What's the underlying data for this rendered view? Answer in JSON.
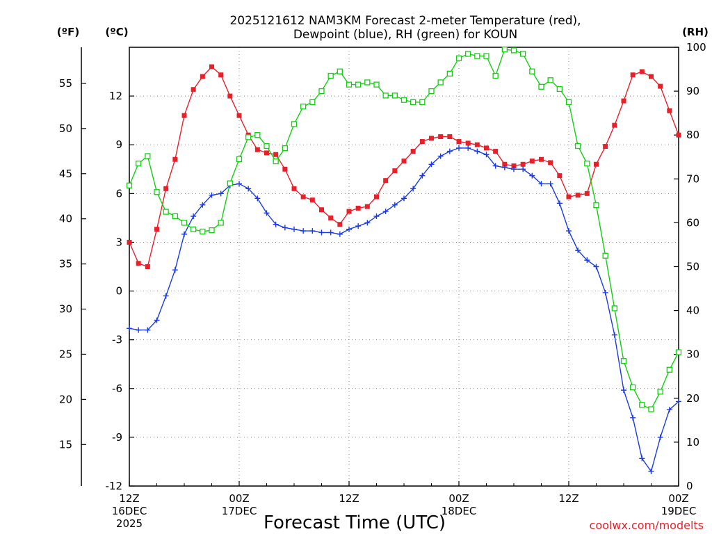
{
  "chart_data": {
    "type": "line",
    "title_line1": "2025121612 NAM3KM Forecast 2-meter Temperature (red),",
    "title_line2": "Dewpoint (blue), RH (green) for KOUN",
    "units": {
      "fahrenheit": "(ºF)",
      "celsius": "(ºC)",
      "rh": "(RH)"
    },
    "xlabel": "Forecast Time (UTC)",
    "credit": "coolwx.com/modelts",
    "x_range_hours": [
      0,
      60
    ],
    "celsius_range": [
      -12,
      15
    ],
    "rh_range": [
      0,
      100
    ],
    "celsius_ticks": [
      "12",
      "9",
      "6",
      "3",
      "0",
      "-3",
      "-6",
      "-9",
      "-12"
    ],
    "fahrenheit_ticks": [
      "55",
      "50",
      "45",
      "40",
      "35",
      "30",
      "25",
      "20",
      "15"
    ],
    "rh_ticks": [
      "100",
      "90",
      "80",
      "70",
      "60",
      "50",
      "40",
      "30",
      "20",
      "10",
      "0"
    ],
    "x_ticks": [
      {
        "hour": 0,
        "line1": "12Z",
        "line2": "16DEC",
        "line3": "2025"
      },
      {
        "hour": 12,
        "line1": "00Z",
        "line2": "17DEC",
        "line3": ""
      },
      {
        "hour": 24,
        "line1": "12Z",
        "line2": "",
        "line3": ""
      },
      {
        "hour": 36,
        "line1": "00Z",
        "line2": "18DEC",
        "line3": ""
      },
      {
        "hour": 48,
        "line1": "12Z",
        "line2": "",
        "line3": ""
      },
      {
        "hour": 60,
        "line1": "00Z",
        "line2": "19DEC",
        "line3": ""
      }
    ],
    "series": [
      {
        "name": "Temperature",
        "unit": "C",
        "color": "#e8202a",
        "marker": "filled-square",
        "values": [
          3.0,
          1.7,
          1.5,
          3.8,
          6.3,
          8.1,
          10.8,
          12.4,
          13.2,
          13.8,
          13.3,
          12.0,
          10.8,
          9.6,
          8.7,
          8.5,
          8.4,
          7.5,
          6.3,
          5.8,
          5.6,
          5.0,
          4.5,
          4.1,
          4.9,
          5.1,
          5.2,
          5.8,
          6.8,
          7.4,
          8.0,
          8.6,
          9.2,
          9.4,
          9.5,
          9.5,
          9.2,
          9.1,
          9.0,
          8.8,
          8.6,
          7.8,
          7.7,
          7.8,
          8.0,
          8.1,
          7.9,
          7.1,
          5.8,
          5.9,
          6.0,
          7.8,
          8.9,
          10.2,
          11.7,
          13.3,
          13.5,
          13.2,
          12.6,
          11.1,
          9.6
        ]
      },
      {
        "name": "Dewpoint",
        "unit": "C",
        "color": "#1a3ae8",
        "marker": "plus",
        "values": [
          -2.3,
          -2.4,
          -2.4,
          -1.8,
          -0.3,
          1.3,
          3.5,
          4.6,
          5.3,
          5.9,
          6.0,
          6.5,
          6.6,
          6.3,
          5.7,
          4.8,
          4.1,
          3.9,
          3.8,
          3.7,
          3.7,
          3.6,
          3.6,
          3.5,
          3.8,
          4.0,
          4.2,
          4.6,
          4.9,
          5.3,
          5.7,
          6.3,
          7.1,
          7.8,
          8.3,
          8.6,
          8.8,
          8.8,
          8.6,
          8.4,
          7.7,
          7.6,
          7.5,
          7.5,
          7.1,
          6.6,
          6.6,
          5.4,
          3.7,
          2.5,
          1.9,
          1.5,
          -0.1,
          -2.7,
          -6.1,
          -7.8,
          -10.3,
          -11.1,
          -9.0,
          -7.3,
          -6.8
        ]
      },
      {
        "name": "RH",
        "unit": "%",
        "color": "#10d010",
        "marker": "open-square",
        "values": [
          68.5,
          73.5,
          75.2,
          67.0,
          62.5,
          61.5,
          60.0,
          58.5,
          58.0,
          58.3,
          60.0,
          69.0,
          74.5,
          79.5,
          80.0,
          77.5,
          74.0,
          77.0,
          82.5,
          86.5,
          87.5,
          90.0,
          93.5,
          94.5,
          91.5,
          91.5,
          92.0,
          91.5,
          89.0,
          89.0,
          88.0,
          87.5,
          87.5,
          90.0,
          92.0,
          94.0,
          97.5,
          98.5,
          98.0,
          98.0,
          93.5,
          99.5,
          99.3,
          98.5,
          94.5,
          91.0,
          92.5,
          90.5,
          87.5,
          77.5,
          73.5,
          64.0,
          52.5,
          40.5,
          28.5,
          22.5,
          18.5,
          17.5,
          21.5,
          26.5,
          30.5
        ]
      }
    ]
  }
}
